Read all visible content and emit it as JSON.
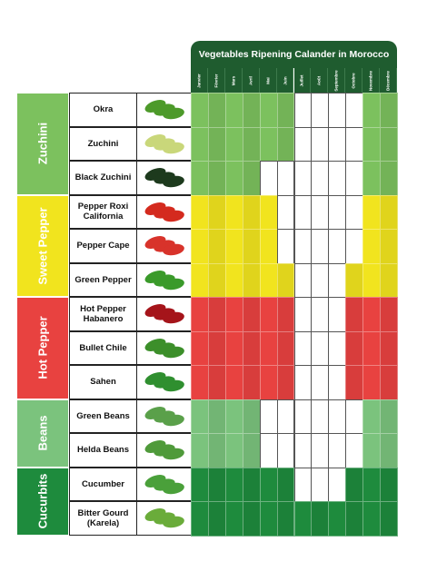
{
  "title": "Vegetables Ripening Calander in Morocco",
  "months": [
    "Janvier",
    "Février",
    "Mars",
    "Avril",
    "Mai",
    "Juin",
    "Juillet",
    "Août",
    "Septembre",
    "Octobre",
    "Novembre",
    "Décembre"
  ],
  "groups": [
    {
      "name": "Zuchini",
      "color": "#7cc15e",
      "items": [
        {
          "name": "Okra",
          "ripening": [
            1,
            1,
            1,
            1,
            1,
            1,
            0,
            0,
            0,
            0,
            1,
            1
          ]
        },
        {
          "name": "Zuchini",
          "ripening": [
            1,
            1,
            1,
            1,
            1,
            1,
            0,
            0,
            0,
            0,
            1,
            1
          ]
        },
        {
          "name": "Black Zuchini",
          "ripening": [
            1,
            1,
            1,
            1,
            0,
            0,
            0,
            0,
            0,
            0,
            1,
            1
          ]
        }
      ]
    },
    {
      "name": "Sweet Pepper",
      "color": "#f1e41e",
      "items": [
        {
          "name": "Pepper Roxi California",
          "ripening": [
            1,
            1,
            1,
            1,
            1,
            0,
            0,
            0,
            0,
            0,
            1,
            1
          ]
        },
        {
          "name": "Pepper Cape",
          "ripening": [
            1,
            1,
            1,
            1,
            1,
            0,
            0,
            0,
            0,
            0,
            1,
            1
          ]
        },
        {
          "name": "Green Pepper",
          "ripening": [
            1,
            1,
            1,
            1,
            1,
            1,
            0,
            0,
            0,
            1,
            1,
            1
          ]
        }
      ]
    },
    {
      "name": "Hot Pepper",
      "color": "#e84240",
      "items": [
        {
          "name": "Hot Pepper Habanero",
          "ripening": [
            1,
            1,
            1,
            1,
            1,
            1,
            0,
            0,
            0,
            1,
            1,
            1
          ]
        },
        {
          "name": "Bullet Chile",
          "ripening": [
            1,
            1,
            1,
            1,
            1,
            1,
            0,
            0,
            0,
            1,
            1,
            1
          ]
        },
        {
          "name": "Sahen",
          "ripening": [
            1,
            1,
            1,
            1,
            1,
            1,
            0,
            0,
            0,
            1,
            1,
            1
          ]
        }
      ]
    },
    {
      "name": "Beans",
      "color": "#7bc37d",
      "items": [
        {
          "name": "Green Beans",
          "ripening": [
            1,
            1,
            1,
            1,
            0,
            0,
            0,
            0,
            0,
            0,
            1,
            1
          ]
        },
        {
          "name": "Helda Beans",
          "ripening": [
            1,
            1,
            1,
            1,
            0,
            0,
            0,
            0,
            0,
            0,
            1,
            1
          ]
        }
      ]
    },
    {
      "name": "Cucurbits",
      "color": "#1e8b3d",
      "items": [
        {
          "name": "Cucumber",
          "ripening": [
            1,
            1,
            1,
            1,
            1,
            1,
            0,
            0,
            0,
            1,
            1,
            1
          ]
        },
        {
          "name": "Bitter Gourd (Karela)",
          "ripening": [
            1,
            1,
            1,
            1,
            1,
            1,
            1,
            1,
            1,
            1,
            1,
            1
          ]
        }
      ]
    }
  ]
}
